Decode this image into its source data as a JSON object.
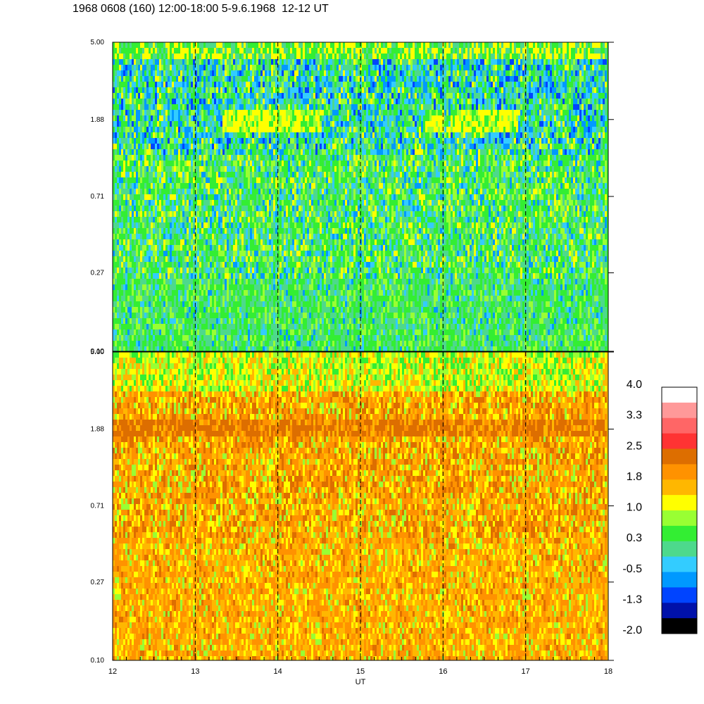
{
  "title": "1968 0608 (160) 12:00-18:00 5-9.6.1968  12-12 UT",
  "chart_data": [
    {
      "type": "heatmap",
      "panel": "upper",
      "y_scale": "log",
      "y_ticks": [
        "0.10",
        "0.27",
        "0.71",
        "1.88",
        "5.00"
      ],
      "y_tick_values": [
        0.1,
        0.27,
        0.71,
        1.88,
        5.0
      ],
      "x_range": [
        12,
        18
      ],
      "hour_markers": [
        13,
        14,
        15,
        16,
        17
      ],
      "notes": "Dominantly green/cyan noise; blue streaks near top; yellow band near 1.88 between ~13.3-14.5 and 16.2-16.9 UT."
    },
    {
      "type": "heatmap",
      "panel": "lower",
      "y_scale": "log",
      "y_ticks": [
        "0.10",
        "0.27",
        "0.71",
        "1.88",
        "5.00"
      ],
      "y_tick_values": [
        0.1,
        0.27,
        0.71,
        1.88,
        5.0
      ],
      "x_range": [
        12,
        18
      ],
      "hour_markers": [
        13,
        14,
        15,
        16,
        17
      ],
      "x_ticks": [
        "12",
        "13",
        "14",
        "15",
        "16",
        "17",
        "18"
      ],
      "xlabel": "UT",
      "notes": "Dominantly orange/yellow; darker orange band near 1.88; yellow-green toward top."
    }
  ],
  "colorbar": {
    "labels": [
      "4.0",
      "3.3",
      "2.5",
      "1.8",
      "1.0",
      "0.3",
      "-0.5",
      "-1.3",
      "-2.0"
    ],
    "colors_top_to_bottom": [
      "#ffffff",
      "#ff9999",
      "#ff6666",
      "#ff3333",
      "#dd6e00",
      "#ff9200",
      "#ffb700",
      "#ffff00",
      "#99ff33",
      "#33ee33",
      "#4dd98c",
      "#33ccff",
      "#0099ff",
      "#0044ff",
      "#0011aa",
      "#000000"
    ]
  }
}
